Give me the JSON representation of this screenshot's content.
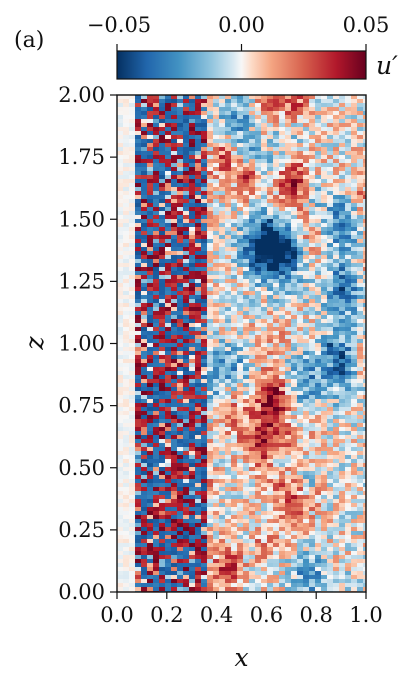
{
  "panel_label": "(a)",
  "chart_data": {
    "type": "heatmap",
    "xlabel": "x",
    "ylabel": "z",
    "xlim": [
      0.0,
      1.0
    ],
    "ylim": [
      0.0,
      2.0
    ],
    "xticks": [
      "0.0",
      "0.2",
      "0.4",
      "0.6",
      "0.8",
      "1.0"
    ],
    "yticks": [
      "0.00",
      "0.25",
      "0.50",
      "0.75",
      "1.00",
      "1.25",
      "1.50",
      "1.75",
      "2.00"
    ],
    "colorbar": {
      "label": "u′",
      "range": [
        -0.05,
        0.05
      ],
      "ticks": [
        "−0.05",
        "0.00",
        "0.05"
      ],
      "colormap": "RdBu_r"
    },
    "field_notes": {
      "uniform_inflow_region_x": [
        0.0,
        0.07
      ],
      "fine_scale_disturbance_region_x": [
        0.07,
        0.35
      ],
      "turbulent_region_x": [
        0.35,
        1.0
      ]
    }
  },
  "colors": {
    "negative": "#08306b",
    "neutral": "#f7f7f7",
    "positive": "#67000d"
  }
}
